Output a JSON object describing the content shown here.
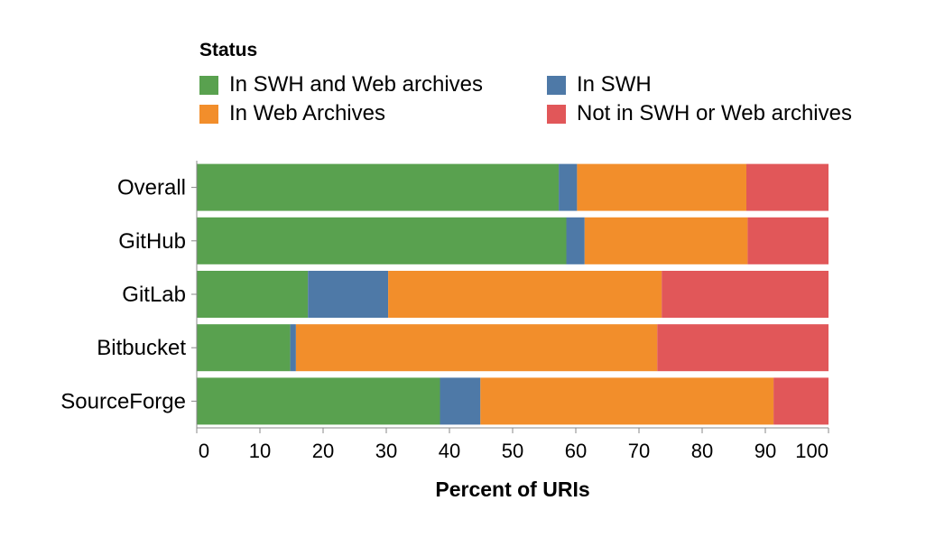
{
  "legend": {
    "title": "Status",
    "items": [
      {
        "label": "In SWH and Web archives",
        "color": "#59a14f"
      },
      {
        "label": "In SWH",
        "color": "#4e79a7"
      },
      {
        "label": "In Web Archives",
        "color": "#f28e2b"
      },
      {
        "label": "Not in SWH or Web archives",
        "color": "#e15759"
      }
    ]
  },
  "chart_data": {
    "type": "bar",
    "orientation": "horizontal",
    "stacked": true,
    "title": "",
    "xlabel": "Percent of URIs",
    "ylabel": "",
    "xlim": [
      0,
      100
    ],
    "x_ticks": [
      0,
      10,
      20,
      30,
      40,
      50,
      60,
      70,
      80,
      90,
      100
    ],
    "categories": [
      "Overall",
      "GitHub",
      "GitLab",
      "Bitbucket",
      "SourceForge"
    ],
    "series": [
      {
        "name": "In SWH and Web archives",
        "color": "#59a14f",
        "values": [
          57.3,
          58.5,
          17.6,
          14.8,
          38.5
        ]
      },
      {
        "name": "In SWH",
        "color": "#4e79a7",
        "values": [
          2.9,
          2.9,
          12.7,
          0.9,
          6.4
        ]
      },
      {
        "name": "In Web Archives",
        "color": "#f28e2b",
        "values": [
          26.8,
          25.8,
          43.3,
          57.2,
          46.4
        ]
      },
      {
        "name": "Not in SWH or Web archives",
        "color": "#e15759",
        "values": [
          13.0,
          12.8,
          26.4,
          27.1,
          8.7
        ]
      }
    ],
    "grid": false,
    "legend_position": "top"
  }
}
